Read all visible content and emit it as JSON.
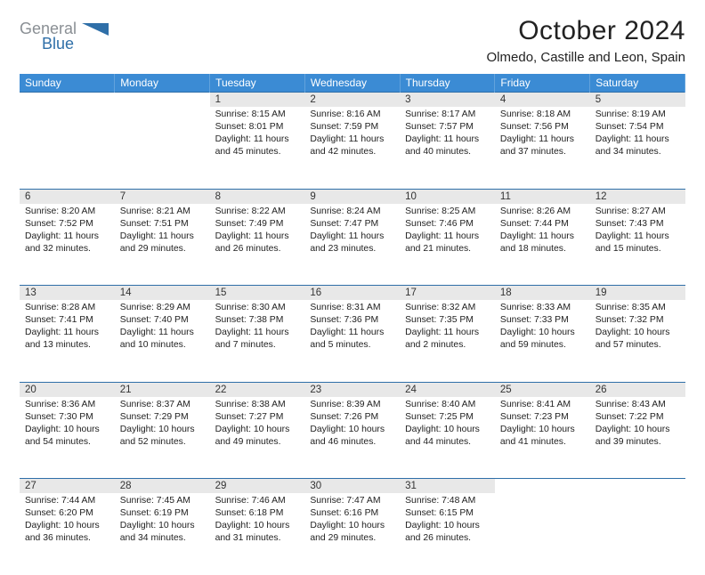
{
  "brand": {
    "word1": "General",
    "word2": "Blue",
    "color_gray": "#8a8f94",
    "color_blue": "#2f6fa8"
  },
  "title": "October 2024",
  "location": "Olmedo, Castille and Leon, Spain",
  "header_bg": "#3b8bd4",
  "daynum_bg": "#e8e8e8",
  "border_blue": "#2f6fa8",
  "days": [
    "Sunday",
    "Monday",
    "Tuesday",
    "Wednesday",
    "Thursday",
    "Friday",
    "Saturday"
  ],
  "weeks": [
    [
      null,
      null,
      {
        "n": "1",
        "sr": "Sunrise: 8:15 AM",
        "ss": "Sunset: 8:01 PM",
        "dl": "Daylight: 11 hours and 45 minutes."
      },
      {
        "n": "2",
        "sr": "Sunrise: 8:16 AM",
        "ss": "Sunset: 7:59 PM",
        "dl": "Daylight: 11 hours and 42 minutes."
      },
      {
        "n": "3",
        "sr": "Sunrise: 8:17 AM",
        "ss": "Sunset: 7:57 PM",
        "dl": "Daylight: 11 hours and 40 minutes."
      },
      {
        "n": "4",
        "sr": "Sunrise: 8:18 AM",
        "ss": "Sunset: 7:56 PM",
        "dl": "Daylight: 11 hours and 37 minutes."
      },
      {
        "n": "5",
        "sr": "Sunrise: 8:19 AM",
        "ss": "Sunset: 7:54 PM",
        "dl": "Daylight: 11 hours and 34 minutes."
      }
    ],
    [
      {
        "n": "6",
        "sr": "Sunrise: 8:20 AM",
        "ss": "Sunset: 7:52 PM",
        "dl": "Daylight: 11 hours and 32 minutes."
      },
      {
        "n": "7",
        "sr": "Sunrise: 8:21 AM",
        "ss": "Sunset: 7:51 PM",
        "dl": "Daylight: 11 hours and 29 minutes."
      },
      {
        "n": "8",
        "sr": "Sunrise: 8:22 AM",
        "ss": "Sunset: 7:49 PM",
        "dl": "Daylight: 11 hours and 26 minutes."
      },
      {
        "n": "9",
        "sr": "Sunrise: 8:24 AM",
        "ss": "Sunset: 7:47 PM",
        "dl": "Daylight: 11 hours and 23 minutes."
      },
      {
        "n": "10",
        "sr": "Sunrise: 8:25 AM",
        "ss": "Sunset: 7:46 PM",
        "dl": "Daylight: 11 hours and 21 minutes."
      },
      {
        "n": "11",
        "sr": "Sunrise: 8:26 AM",
        "ss": "Sunset: 7:44 PM",
        "dl": "Daylight: 11 hours and 18 minutes."
      },
      {
        "n": "12",
        "sr": "Sunrise: 8:27 AM",
        "ss": "Sunset: 7:43 PM",
        "dl": "Daylight: 11 hours and 15 minutes."
      }
    ],
    [
      {
        "n": "13",
        "sr": "Sunrise: 8:28 AM",
        "ss": "Sunset: 7:41 PM",
        "dl": "Daylight: 11 hours and 13 minutes."
      },
      {
        "n": "14",
        "sr": "Sunrise: 8:29 AM",
        "ss": "Sunset: 7:40 PM",
        "dl": "Daylight: 11 hours and 10 minutes."
      },
      {
        "n": "15",
        "sr": "Sunrise: 8:30 AM",
        "ss": "Sunset: 7:38 PM",
        "dl": "Daylight: 11 hours and 7 minutes."
      },
      {
        "n": "16",
        "sr": "Sunrise: 8:31 AM",
        "ss": "Sunset: 7:36 PM",
        "dl": "Daylight: 11 hours and 5 minutes."
      },
      {
        "n": "17",
        "sr": "Sunrise: 8:32 AM",
        "ss": "Sunset: 7:35 PM",
        "dl": "Daylight: 11 hours and 2 minutes."
      },
      {
        "n": "18",
        "sr": "Sunrise: 8:33 AM",
        "ss": "Sunset: 7:33 PM",
        "dl": "Daylight: 10 hours and 59 minutes."
      },
      {
        "n": "19",
        "sr": "Sunrise: 8:35 AM",
        "ss": "Sunset: 7:32 PM",
        "dl": "Daylight: 10 hours and 57 minutes."
      }
    ],
    [
      {
        "n": "20",
        "sr": "Sunrise: 8:36 AM",
        "ss": "Sunset: 7:30 PM",
        "dl": "Daylight: 10 hours and 54 minutes."
      },
      {
        "n": "21",
        "sr": "Sunrise: 8:37 AM",
        "ss": "Sunset: 7:29 PM",
        "dl": "Daylight: 10 hours and 52 minutes."
      },
      {
        "n": "22",
        "sr": "Sunrise: 8:38 AM",
        "ss": "Sunset: 7:27 PM",
        "dl": "Daylight: 10 hours and 49 minutes."
      },
      {
        "n": "23",
        "sr": "Sunrise: 8:39 AM",
        "ss": "Sunset: 7:26 PM",
        "dl": "Daylight: 10 hours and 46 minutes."
      },
      {
        "n": "24",
        "sr": "Sunrise: 8:40 AM",
        "ss": "Sunset: 7:25 PM",
        "dl": "Daylight: 10 hours and 44 minutes."
      },
      {
        "n": "25",
        "sr": "Sunrise: 8:41 AM",
        "ss": "Sunset: 7:23 PM",
        "dl": "Daylight: 10 hours and 41 minutes."
      },
      {
        "n": "26",
        "sr": "Sunrise: 8:43 AM",
        "ss": "Sunset: 7:22 PM",
        "dl": "Daylight: 10 hours and 39 minutes."
      }
    ],
    [
      {
        "n": "27",
        "sr": "Sunrise: 7:44 AM",
        "ss": "Sunset: 6:20 PM",
        "dl": "Daylight: 10 hours and 36 minutes."
      },
      {
        "n": "28",
        "sr": "Sunrise: 7:45 AM",
        "ss": "Sunset: 6:19 PM",
        "dl": "Daylight: 10 hours and 34 minutes."
      },
      {
        "n": "29",
        "sr": "Sunrise: 7:46 AM",
        "ss": "Sunset: 6:18 PM",
        "dl": "Daylight: 10 hours and 31 minutes."
      },
      {
        "n": "30",
        "sr": "Sunrise: 7:47 AM",
        "ss": "Sunset: 6:16 PM",
        "dl": "Daylight: 10 hours and 29 minutes."
      },
      {
        "n": "31",
        "sr": "Sunrise: 7:48 AM",
        "ss": "Sunset: 6:15 PM",
        "dl": "Daylight: 10 hours and 26 minutes."
      },
      null,
      null
    ]
  ]
}
